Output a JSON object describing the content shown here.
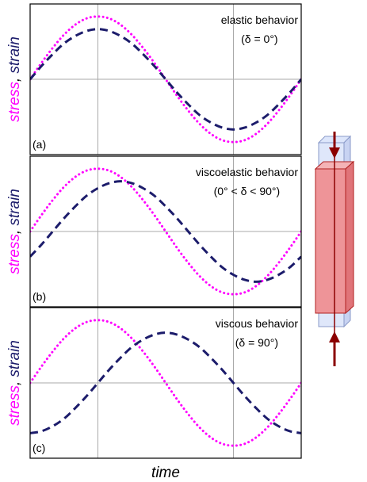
{
  "chart_data": [
    {
      "type": "line",
      "panel_label": "(a)",
      "annotation": [
        "elastic behavior",
        "(δ = 0°)"
      ],
      "x": [
        0,
        15,
        30,
        45,
        60,
        75,
        90,
        105,
        120,
        135,
        150,
        165,
        180,
        195,
        210,
        225,
        240,
        255,
        270,
        285,
        300,
        315,
        330,
        345,
        360
      ],
      "xlim": [
        0,
        360
      ],
      "ylim": [
        -1.2,
        1.2
      ],
      "xgrid": [
        90,
        270
      ],
      "ygrid": [
        0
      ],
      "series": [
        {
          "name": "stress",
          "color": "#ff00ff",
          "style": "dotted",
          "values": [
            0,
            0.26,
            0.5,
            0.71,
            0.87,
            0.97,
            1,
            0.97,
            0.87,
            0.71,
            0.5,
            0.26,
            0,
            -0.26,
            -0.5,
            -0.71,
            -0.87,
            -0.97,
            -1,
            -0.97,
            -0.87,
            -0.71,
            -0.5,
            -0.26,
            0
          ]
        },
        {
          "name": "strain",
          "color": "#1c1c6b",
          "style": "dashed",
          "values": [
            0,
            0.21,
            0.4,
            0.57,
            0.69,
            0.77,
            0.8,
            0.77,
            0.69,
            0.57,
            0.4,
            0.21,
            0,
            -0.21,
            -0.4,
            -0.57,
            -0.69,
            -0.77,
            -0.8,
            -0.77,
            -0.69,
            -0.57,
            -0.4,
            -0.21,
            0
          ]
        }
      ],
      "ylabel_separator": ", "
    },
    {
      "type": "line",
      "panel_label": "(b)",
      "annotation": [
        "viscoelastic behavior",
        "(0° < δ < 90°)"
      ],
      "x": [
        0,
        15,
        30,
        45,
        60,
        75,
        90,
        105,
        120,
        135,
        150,
        165,
        180,
        195,
        210,
        225,
        240,
        255,
        270,
        285,
        300,
        315,
        330,
        345,
        360
      ],
      "xlim": [
        0,
        360
      ],
      "ylim": [
        -1.2,
        1.2
      ],
      "xgrid": [
        90,
        270
      ],
      "ygrid": [
        0
      ],
      "series": [
        {
          "name": "stress",
          "color": "#ff00ff",
          "style": "dotted",
          "values": [
            0,
            0.26,
            0.5,
            0.71,
            0.87,
            0.97,
            1,
            0.97,
            0.87,
            0.71,
            0.5,
            0.26,
            0,
            -0.26,
            -0.5,
            -0.71,
            -0.87,
            -0.97,
            -1,
            -0.97,
            -0.87,
            -0.71,
            -0.5,
            -0.26,
            0
          ]
        },
        {
          "name": "strain",
          "color": "#1c1c6b",
          "style": "dashed",
          "values": [
            -0.4,
            -0.21,
            0,
            0.21,
            0.4,
            0.57,
            0.69,
            0.77,
            0.8,
            0.77,
            0.69,
            0.57,
            0.4,
            0.21,
            0,
            -0.21,
            -0.4,
            -0.57,
            -0.69,
            -0.77,
            -0.8,
            -0.77,
            -0.69,
            -0.57,
            -0.4
          ]
        }
      ],
      "ylabel_separator": ", "
    },
    {
      "type": "line",
      "panel_label": "(c)",
      "annotation": [
        "viscous behavior",
        "(δ = 90°)"
      ],
      "x": [
        0,
        15,
        30,
        45,
        60,
        75,
        90,
        105,
        120,
        135,
        150,
        165,
        180,
        195,
        210,
        225,
        240,
        255,
        270,
        285,
        300,
        315,
        330,
        345,
        360
      ],
      "xlim": [
        0,
        360
      ],
      "ylim": [
        -1.2,
        1.2
      ],
      "xgrid": [
        90,
        270
      ],
      "ygrid": [
        0
      ],
      "series": [
        {
          "name": "stress",
          "color": "#ff00ff",
          "style": "dotted",
          "values": [
            0,
            0.26,
            0.5,
            0.71,
            0.87,
            0.97,
            1,
            0.97,
            0.87,
            0.71,
            0.5,
            0.26,
            0,
            -0.26,
            -0.5,
            -0.71,
            -0.87,
            -0.97,
            -1,
            -0.97,
            -0.87,
            -0.71,
            -0.5,
            -0.26,
            0
          ]
        },
        {
          "name": "strain",
          "color": "#1c1c6b",
          "style": "dashed",
          "values": [
            -0.8,
            -0.77,
            -0.69,
            -0.57,
            -0.4,
            -0.21,
            0,
            0.21,
            0.4,
            0.57,
            0.69,
            0.77,
            0.8,
            0.77,
            0.69,
            0.57,
            0.4,
            0.21,
            0,
            -0.21,
            -0.4,
            -0.57,
            -0.69,
            -0.77,
            -0.8
          ]
        }
      ],
      "ylabel_separator": ", ",
      "xlabel": "time"
    }
  ]
}
